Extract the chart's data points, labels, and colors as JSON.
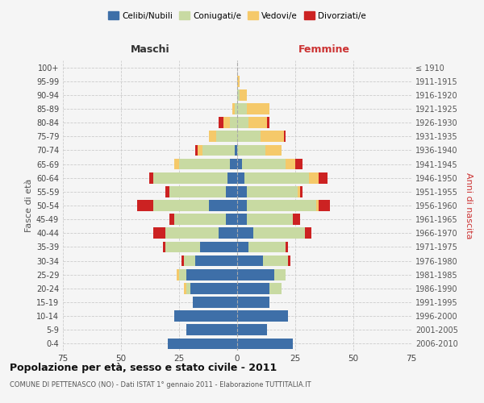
{
  "age_groups": [
    "0-4",
    "5-9",
    "10-14",
    "15-19",
    "20-24",
    "25-29",
    "30-34",
    "35-39",
    "40-44",
    "45-49",
    "50-54",
    "55-59",
    "60-64",
    "65-69",
    "70-74",
    "75-79",
    "80-84",
    "85-89",
    "90-94",
    "95-99",
    "100+"
  ],
  "birth_years": [
    "2006-2010",
    "2001-2005",
    "1996-2000",
    "1991-1995",
    "1986-1990",
    "1981-1985",
    "1976-1980",
    "1971-1975",
    "1966-1970",
    "1961-1965",
    "1956-1960",
    "1951-1955",
    "1946-1950",
    "1941-1945",
    "1936-1940",
    "1931-1935",
    "1926-1930",
    "1921-1925",
    "1916-1920",
    "1911-1915",
    "≤ 1910"
  ],
  "males": {
    "celibi": [
      30,
      22,
      27,
      19,
      20,
      22,
      18,
      16,
      8,
      5,
      12,
      5,
      4,
      3,
      1,
      0,
      0,
      0,
      0,
      0,
      0
    ],
    "coniugati": [
      0,
      0,
      0,
      0,
      2,
      3,
      5,
      15,
      23,
      22,
      24,
      24,
      32,
      22,
      14,
      9,
      3,
      1,
      0,
      0,
      0
    ],
    "vedovi": [
      0,
      0,
      0,
      0,
      1,
      1,
      0,
      0,
      0,
      0,
      0,
      0,
      0,
      2,
      2,
      3,
      3,
      1,
      0,
      0,
      0
    ],
    "divorziati": [
      0,
      0,
      0,
      0,
      0,
      0,
      1,
      1,
      5,
      2,
      7,
      2,
      2,
      0,
      1,
      0,
      2,
      0,
      0,
      0,
      0
    ]
  },
  "females": {
    "nubili": [
      24,
      13,
      22,
      14,
      14,
      16,
      11,
      5,
      7,
      4,
      4,
      4,
      3,
      2,
      0,
      0,
      0,
      0,
      0,
      0,
      0
    ],
    "coniugate": [
      0,
      0,
      0,
      0,
      5,
      5,
      11,
      16,
      22,
      20,
      30,
      22,
      28,
      19,
      12,
      10,
      5,
      4,
      1,
      0,
      0
    ],
    "vedove": [
      0,
      0,
      0,
      0,
      0,
      0,
      0,
      0,
      0,
      0,
      1,
      1,
      4,
      4,
      7,
      10,
      8,
      10,
      3,
      1,
      0
    ],
    "divorziate": [
      0,
      0,
      0,
      0,
      0,
      0,
      1,
      1,
      3,
      3,
      5,
      1,
      4,
      3,
      0,
      1,
      1,
      0,
      0,
      0,
      0
    ]
  },
  "colors": {
    "celibi": "#3e6fa8",
    "coniugati": "#c8daa2",
    "vedovi": "#f5c96a",
    "divorziati": "#cc2222"
  },
  "title": "Popolazione per età, sesso e stato civile - 2011",
  "subtitle": "COMUNE DI PETTENASCO (NO) - Dati ISTAT 1° gennaio 2011 - Elaborazione TUTTITALIA.IT",
  "xlabel_left": "Maschi",
  "xlabel_right": "Femmine",
  "ylabel_left": "Fasce di età",
  "ylabel_right": "Anni di nascita",
  "xlim": 75,
  "background_color": "#f5f5f5",
  "grid_color": "#cccccc",
  "legend_labels": [
    "Celibi/Nubili",
    "Coniugati/e",
    "Vedovi/e",
    "Divorziati/e"
  ]
}
